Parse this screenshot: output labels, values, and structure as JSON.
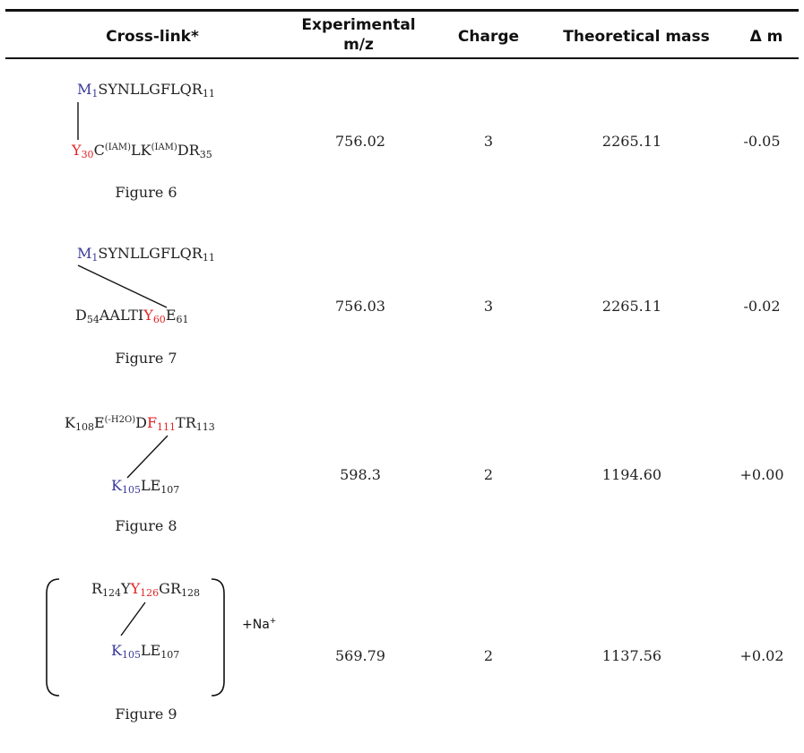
{
  "headers": {
    "crosslink": "Cross-link*",
    "experimental_line1": "Experimental",
    "experimental_line2": "m/z",
    "charge": "Charge",
    "theoretical": "Theoretical mass",
    "delta": "Δ m"
  },
  "rows": [
    {
      "figure": "Figure 6",
      "mz": "756.02",
      "charge": "3",
      "theoretical": "2265.11",
      "delta": "-0.05",
      "pep1": {
        "a": "M",
        "a_sub": "1",
        "b": "SYNLLGFLQR",
        "b_sub": "11"
      },
      "pep2": {
        "a": "Y",
        "a_sub": "30",
        "b": "C",
        "b_sup": "(IAM)",
        "c": "LK",
        "c_sup": "(IAM)",
        "d": "DR",
        "d_sub": "35"
      }
    },
    {
      "figure": "Figure 7",
      "mz": "756.03",
      "charge": "3",
      "theoretical": "2265.11",
      "delta": "-0.02",
      "pep1": {
        "a": "M",
        "a_sub": "1",
        "b": "SYNLLGFLQR",
        "b_sub": "11"
      },
      "pep2": {
        "a": "D",
        "a_sub": "54",
        "b": "AALTI",
        "c": "Y",
        "c_sub": "60",
        "d": "E",
        "d_sub": "61"
      }
    },
    {
      "figure": "Figure 8",
      "mz": "598.3",
      "charge": "2",
      "theoretical": "1194.60",
      "delta": "+0.00",
      "pep1": {
        "a": "K",
        "a_sub": "108",
        "b": "E",
        "b_sup": "(-H2O)",
        "c": "D",
        "d": "F",
        "d_sub": "111",
        "e": "TR",
        "e_sub": "113"
      },
      "pep2": {
        "a": "K",
        "a_sub": "105",
        "b": "LE",
        "b_sub": "107"
      }
    },
    {
      "figure": "Figure 9",
      "mz": "569.79",
      "charge": "2",
      "theoretical": "1137.56",
      "delta": "+0.02",
      "pep1": {
        "a": "R",
        "a_sub": "124",
        "b": "Y",
        "c": "Y",
        "c_sub": "126",
        "d": "GR",
        "d_sub": "128"
      },
      "pep2": {
        "a": "K",
        "a_sub": "105",
        "b": "LE",
        "b_sub": "107"
      },
      "adduct": "+Na",
      "adduct_sup": "+"
    }
  ]
}
